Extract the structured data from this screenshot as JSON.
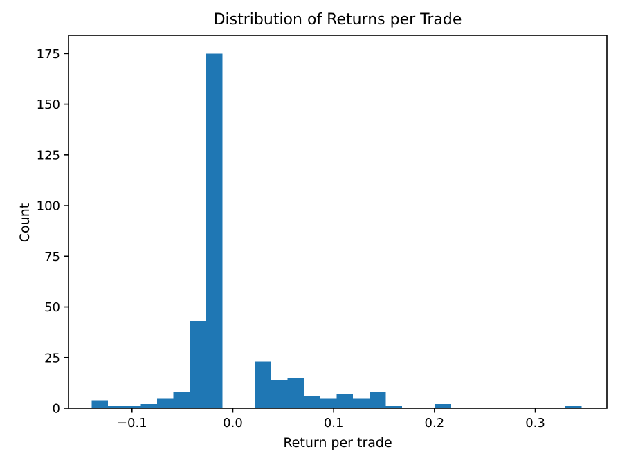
{
  "chart_data": {
    "type": "bar",
    "subtype": "histogram",
    "title": "Distribution of Returns per Trade",
    "xlabel": "Return per trade",
    "ylabel": "Count",
    "bar_color": "#1f77b4",
    "background_color": "#ffffff",
    "axis_color": "#000000",
    "grid": false,
    "legend": null,
    "bins": 30,
    "bin_start": -0.14,
    "bin_width": 0.0162,
    "counts": [
      4,
      1,
      1,
      2,
      5,
      8,
      43,
      175,
      0,
      0,
      23,
      14,
      15,
      6,
      5,
      7,
      5,
      8,
      1,
      0,
      0,
      2,
      0,
      0,
      0,
      0,
      0,
      0,
      0,
      1
    ],
    "xlim": [
      -0.163,
      0.371
    ],
    "ylim": [
      0,
      184
    ],
    "xticks": [
      -0.1,
      0.0,
      0.1,
      0.2,
      0.3
    ],
    "xtick_labels": [
      "−0.1",
      "0.0",
      "0.1",
      "0.2",
      "0.3"
    ],
    "yticks": [
      0,
      25,
      50,
      75,
      100,
      125,
      150,
      175
    ],
    "ytick_labels": [
      "0",
      "25",
      "50",
      "75",
      "100",
      "125",
      "150",
      "175"
    ]
  }
}
